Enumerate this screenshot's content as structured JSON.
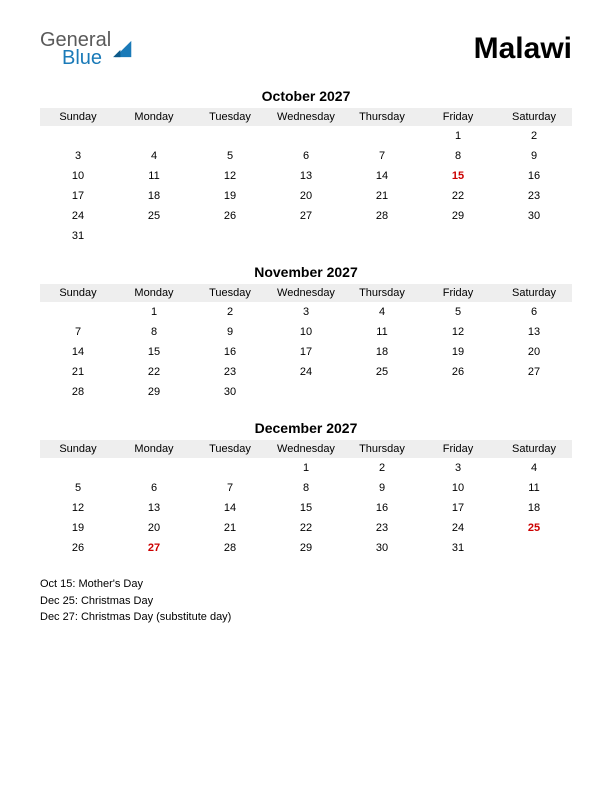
{
  "header": {
    "logo_general": "General",
    "logo_blue": "Blue",
    "title": "Malawi"
  },
  "colors": {
    "holiday": "#cc0000",
    "header_bg": "#eeeeee",
    "text": "#000000",
    "logo_general": "#5a5a5a",
    "logo_blue": "#1a7ab8",
    "background": "#ffffff"
  },
  "day_headers": [
    "Sunday",
    "Monday",
    "Tuesday",
    "Wednesday",
    "Thursday",
    "Friday",
    "Saturday"
  ],
  "months": [
    {
      "title": "October 2027",
      "weeks": [
        [
          "",
          "",
          "",
          "",
          "",
          "1",
          "2"
        ],
        [
          "3",
          "4",
          "5",
          "6",
          "7",
          "8",
          "9"
        ],
        [
          "10",
          "11",
          "12",
          "13",
          "14",
          "15",
          "16"
        ],
        [
          "17",
          "18",
          "19",
          "20",
          "21",
          "22",
          "23"
        ],
        [
          "24",
          "25",
          "26",
          "27",
          "28",
          "29",
          "30"
        ],
        [
          "31",
          "",
          "",
          "",
          "",
          "",
          ""
        ]
      ],
      "holidays": [
        "15"
      ]
    },
    {
      "title": "November 2027",
      "weeks": [
        [
          "",
          "1",
          "2",
          "3",
          "4",
          "5",
          "6"
        ],
        [
          "7",
          "8",
          "9",
          "10",
          "11",
          "12",
          "13"
        ],
        [
          "14",
          "15",
          "16",
          "17",
          "18",
          "19",
          "20"
        ],
        [
          "21",
          "22",
          "23",
          "24",
          "25",
          "26",
          "27"
        ],
        [
          "28",
          "29",
          "30",
          "",
          "",
          "",
          ""
        ]
      ],
      "holidays": []
    },
    {
      "title": "December 2027",
      "weeks": [
        [
          "",
          "",
          "",
          "1",
          "2",
          "3",
          "4"
        ],
        [
          "5",
          "6",
          "7",
          "8",
          "9",
          "10",
          "11"
        ],
        [
          "12",
          "13",
          "14",
          "15",
          "16",
          "17",
          "18"
        ],
        [
          "19",
          "20",
          "21",
          "22",
          "23",
          "24",
          "25"
        ],
        [
          "26",
          "27",
          "28",
          "29",
          "30",
          "31",
          ""
        ]
      ],
      "holidays": [
        "25",
        "27"
      ]
    }
  ],
  "holiday_list": [
    "Oct 15: Mother's Day",
    "Dec 25: Christmas Day",
    "Dec 27: Christmas Day (substitute day)"
  ]
}
